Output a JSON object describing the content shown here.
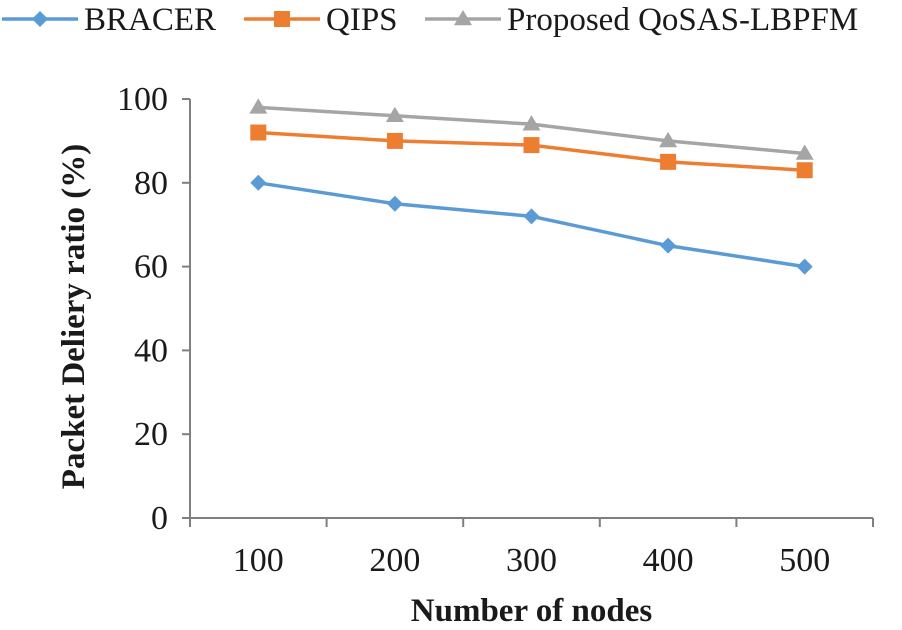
{
  "chart_data": {
    "type": "line",
    "title": "",
    "xlabel": "Number of nodes",
    "ylabel": "Packet Deliery ratio (%)",
    "x": [
      100,
      200,
      300,
      400,
      500
    ],
    "ylim": [
      0,
      100
    ],
    "yticks": [
      0,
      20,
      40,
      60,
      80,
      100
    ],
    "grid": false,
    "legend_position": "top",
    "series": [
      {
        "name": "BRACER",
        "values": [
          80,
          75,
          72,
          65,
          60
        ],
        "color": "#5b9bd5",
        "marker": "diamond"
      },
      {
        "name": "QIPS",
        "values": [
          92,
          90,
          89,
          85,
          83
        ],
        "color": "#ed7d31",
        "marker": "square"
      },
      {
        "name": "Proposed QoSAS-LBPFM",
        "values": [
          98,
          96,
          94,
          90,
          87
        ],
        "color": "#a5a5a5",
        "marker": "triangle"
      }
    ]
  }
}
